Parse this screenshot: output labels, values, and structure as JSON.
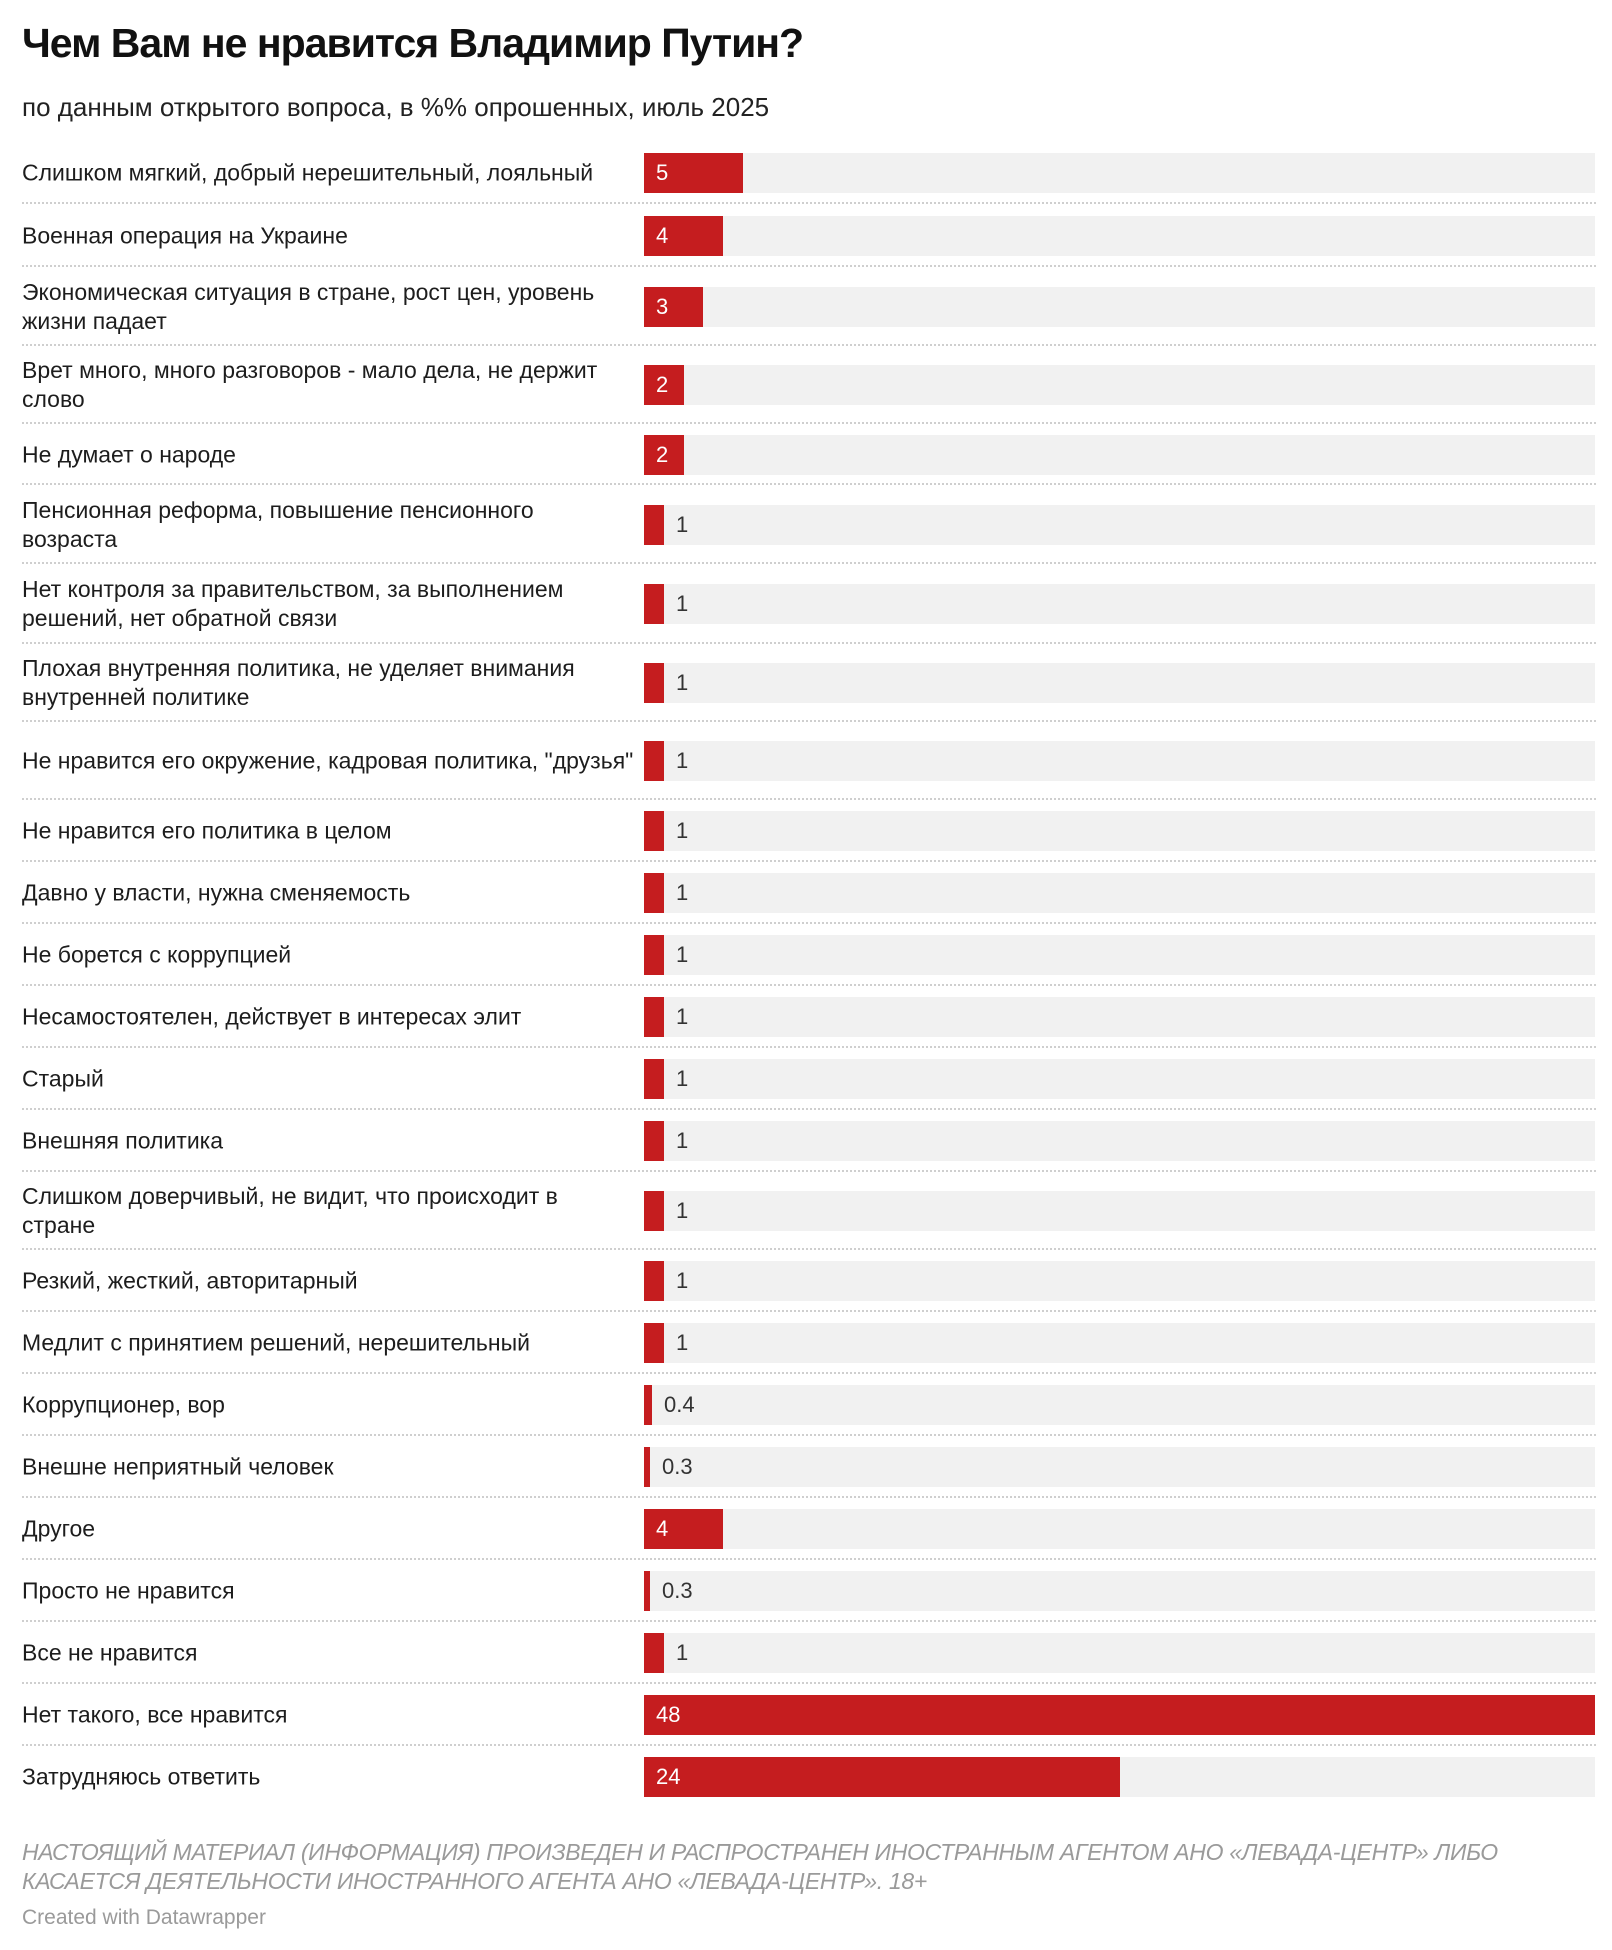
{
  "title": "Чем Вам не нравится Владимир Путин?",
  "subtitle": "по данным открытого вопроса, в %% опрошенных, июль 2025",
  "disclaimer": "НАСТОЯЩИЙ МАТЕРИАЛ (ИНФОРМАЦИЯ) ПРОИЗВЕДЕН И РАСПРОСТРАНЕН ИНОСТРАННЫМ АГЕНТОМ АНО «ЛЕВАДА-ЦЕНТР» ЛИБО КАСАЕТСЯ ДЕЯТЕЛЬНОСТИ ИНОСТРАННОГО АГЕНТА АНО «ЛЕВАДА-ЦЕНТР». 18+",
  "credit": "Created with Datawrapper",
  "colors": {
    "bar": "#c51d1f",
    "track": "#f1f1f1"
  },
  "chart_data": {
    "type": "bar",
    "orientation": "horizontal",
    "title": "Чем Вам не нравится Владимир Путин?",
    "subtitle": "по данным открытого вопроса, в %% опрошенных, июль 2025",
    "xlim": [
      0,
      48
    ],
    "categories": [
      "Слишком мягкий, добрый нерешительный, лояльный",
      "Военная операция на Украине",
      "Экономическая ситуация в стране, рост цен, уровень жизни падает",
      "Врет много, много разговоров - мало дела, не держит слово",
      "Не думает о народе",
      "Пенсионная реформа, повышение пенсионного возраста",
      "Нет контроля за правительством, за выполнением решений, нет обратной связи",
      "Плохая внутренняя политика, не уделяет внимания внутренней политике",
      "Не нравится его окружение, кадровая политика, \"друзья\"",
      "Не нравится его политика в целом",
      "Давно у власти, нужна сменяемость",
      "Не борется с коррупцией",
      "Несамостоятелен, действует в интересах элит",
      "Старый",
      "Внешняя политика",
      "Слишком доверчивый, не видит, что происходит в стране",
      "Резкий, жесткий, авторитарный",
      "Медлит с принятием решений, нерешительный",
      "Коррупционер, вор",
      "Внешне неприятный человек",
      "Другое",
      "Просто не нравится",
      "Все не нравится",
      "Нет такого, все нравится",
      "Затрудняюсь ответить"
    ],
    "values": [
      5,
      4,
      3,
      2,
      2,
      1,
      1,
      1,
      1,
      1,
      1,
      1,
      1,
      1,
      1,
      1,
      1,
      1,
      0.4,
      0.3,
      4,
      0.3,
      1,
      48,
      24
    ]
  }
}
